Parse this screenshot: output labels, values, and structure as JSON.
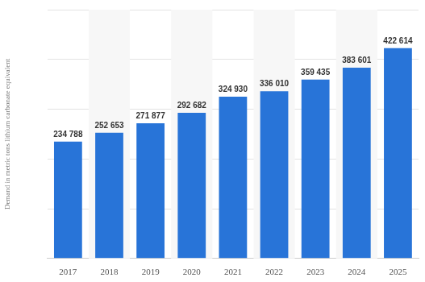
{
  "chart_data": {
    "type": "bar",
    "y_label": "Demand in metric tons lithium carbonate equivalent",
    "categories": [
      "2017",
      "2018",
      "2019",
      "2020",
      "2021",
      "2022",
      "2023",
      "2024",
      "2025"
    ],
    "values": [
      234788,
      252653,
      271877,
      292682,
      324930,
      336010,
      359435,
      383601,
      422614
    ],
    "value_labels": [
      "234 788",
      "252 653",
      "271 877",
      "292 682",
      "324 930",
      "336 010",
      "359 435",
      "383 601",
      "422 614"
    ],
    "color": "#2874d8",
    "ylim": [
      0,
      500000
    ],
    "yticks": [
      0,
      100000,
      200000,
      300000,
      400000,
      500000
    ],
    "grid": true,
    "data_labels": true,
    "tick_labels": "x"
  }
}
